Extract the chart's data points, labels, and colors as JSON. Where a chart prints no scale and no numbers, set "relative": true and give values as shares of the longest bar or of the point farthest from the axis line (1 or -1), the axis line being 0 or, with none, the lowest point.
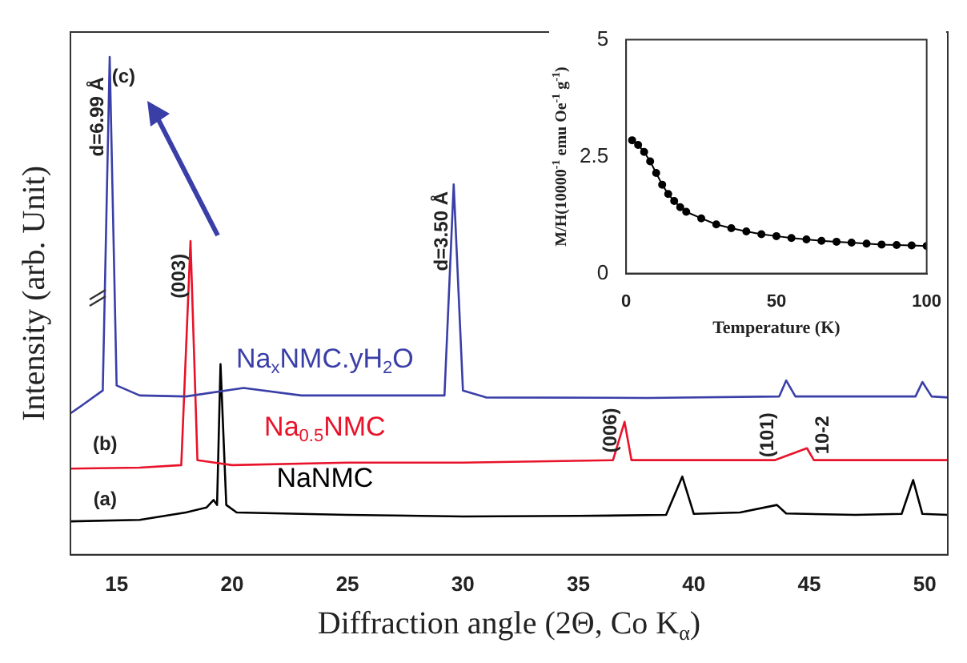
{
  "chart_data": [
    {
      "type": "line",
      "xlabel": "Diffraction angle (2Θ, Co K$_{α}$)",
      "ylabel": "Intensity (arb. Unit)",
      "relative": true,
      "xlim": [
        13,
        51
      ],
      "xticks": [
        15,
        20,
        25,
        30,
        35,
        40,
        45,
        50
      ],
      "grid": false,
      "legend": false,
      "marker": "none",
      "line_style": "solid",
      "series": [
        {
          "name": "Na$_{x}$NMC.yH$_{2}$O",
          "color": "#3a3fa8",
          "x": [
            13,
            13.5,
            14.4,
            14.7,
            15.0,
            16,
            18,
            20.5,
            23,
            29.2,
            29.6,
            30.0,
            31,
            38,
            43.7,
            44.0,
            44.4,
            49.6,
            49.9,
            50.3,
            51
          ],
          "values": [
            0.284,
            0.3,
            0.33,
            1.0,
            0.34,
            0.32,
            0.318,
            0.335,
            0.32,
            0.32,
            0.744,
            0.33,
            0.316,
            0.315,
            0.318,
            0.35,
            0.318,
            0.318,
            0.347,
            0.318,
            0.316
          ]
        },
        {
          "name": "Na$_{0.5}$NMC",
          "color": "#e8132a",
          "x": [
            13,
            16,
            17.8,
            18.2,
            18.5,
            20,
            25,
            30,
            36.5,
            37.0,
            37.3,
            43.5,
            44.9,
            45.2,
            51
          ],
          "values": [
            0.173,
            0.175,
            0.18,
            0.63,
            0.19,
            0.18,
            0.185,
            0.185,
            0.19,
            0.267,
            0.19,
            0.19,
            0.214,
            0.19,
            0.19
          ]
        },
        {
          "name": "NaNMC",
          "color": "#000000",
          "x": [
            13,
            16,
            18,
            18.9,
            19.2,
            19.35,
            19.5,
            19.75,
            20.2,
            25,
            30,
            35,
            38.8,
            39.5,
            40.0,
            42,
            43.6,
            44.0,
            47,
            49.0,
            49.5,
            49.9,
            51
          ],
          "values": [
            0.067,
            0.07,
            0.085,
            0.095,
            0.11,
            0.1,
            0.383,
            0.1,
            0.085,
            0.08,
            0.077,
            0.078,
            0.08,
            0.157,
            0.082,
            0.085,
            0.1,
            0.083,
            0.08,
            0.082,
            0.15,
            0.082,
            0.08
          ]
        }
      ],
      "annotations": [
        "(c)",
        "d=6.99 Å",
        "(003)",
        "d=3.50 Å",
        "(006)",
        "(101)",
        "10-2",
        "(b)",
        "(a)"
      ]
    },
    {
      "type": "line",
      "xlabel": "Temperature (K)",
      "ylabel": "M/H(10000$^{-1}$ emu Oe$^{-1}$ g$^{-1}$)",
      "xlim": [
        0,
        100
      ],
      "xticks": [
        0,
        50,
        100
      ],
      "ylim": [
        0,
        5
      ],
      "yticks": [
        0,
        2.5,
        5
      ],
      "grid": false,
      "legend": false,
      "marker": "circle",
      "line_style": "solid",
      "series": [
        {
          "color": "#000000",
          "x": [
            2,
            4,
            6,
            8,
            10,
            12,
            14,
            16,
            18,
            20,
            25,
            30,
            35,
            40,
            45,
            50,
            55,
            60,
            65,
            70,
            75,
            80,
            85,
            90,
            95,
            100
          ],
          "values": [
            2.85,
            2.75,
            2.6,
            2.4,
            2.15,
            1.9,
            1.7,
            1.55,
            1.42,
            1.32,
            1.18,
            1.05,
            0.97,
            0.9,
            0.84,
            0.8,
            0.76,
            0.73,
            0.7,
            0.68,
            0.66,
            0.64,
            0.62,
            0.61,
            0.6,
            0.59
          ]
        }
      ]
    }
  ]
}
